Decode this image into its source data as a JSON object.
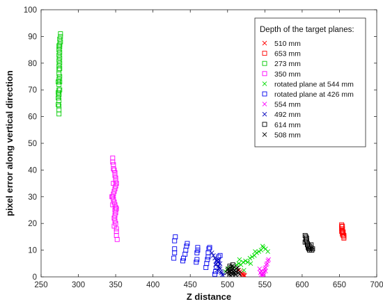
{
  "chart_data": {
    "type": "scatter",
    "title": "",
    "xlabel": "Z distance",
    "ylabel": "pixel error along vertical direction",
    "xlim": [
      250,
      700
    ],
    "ylim": [
      0,
      100
    ],
    "xticks": [
      250,
      300,
      350,
      400,
      450,
      500,
      550,
      600,
      650,
      700
    ],
    "yticks": [
      0,
      10,
      20,
      30,
      40,
      50,
      60,
      70,
      80,
      90,
      100
    ],
    "grid": false,
    "legend": {
      "title": "Depth of the target planes:",
      "placement": "top-right"
    },
    "series": [
      {
        "name": "510 mm",
        "marker": "x",
        "color": "#ff0000",
        "points": [
          [
            515,
            2.5
          ],
          [
            517,
            2.0
          ],
          [
            518,
            1.5
          ],
          [
            519,
            1.2
          ],
          [
            520,
            1.0
          ],
          [
            521,
            0.8
          ],
          [
            522,
            0.6
          ],
          [
            523,
            0.5
          ]
        ]
      },
      {
        "name": "653 mm",
        "marker": "square",
        "color": "#ff0000",
        "points": [
          [
            653,
            19.5
          ],
          [
            653,
            18.8
          ],
          [
            653,
            18.0
          ],
          [
            654,
            17.5
          ],
          [
            654,
            17.0
          ],
          [
            654,
            16.5
          ],
          [
            655,
            16.0
          ],
          [
            655,
            15.5
          ],
          [
            656,
            15.0
          ],
          [
            656,
            14.5
          ],
          [
            654,
            16.0
          ],
          [
            654,
            18.0
          ],
          [
            653,
            17.0
          ],
          [
            656,
            15.5
          ],
          [
            655,
            16.8
          ],
          [
            654,
            19.0
          ]
        ]
      },
      {
        "name": "273 mm",
        "marker": "square",
        "color": "#00cc00",
        "points": [
          [
            274,
            61
          ],
          [
            274,
            62.5
          ],
          [
            273,
            64.5
          ],
          [
            274,
            66
          ],
          [
            273,
            67
          ],
          [
            274,
            68
          ],
          [
            273,
            69
          ],
          [
            274,
            70
          ],
          [
            274,
            72
          ],
          [
            273,
            73
          ],
          [
            274,
            74
          ],
          [
            275,
            75
          ],
          [
            274,
            76
          ],
          [
            274,
            77.5
          ],
          [
            275,
            78
          ],
          [
            274,
            79
          ],
          [
            275,
            80
          ],
          [
            274,
            81
          ],
          [
            275,
            82
          ],
          [
            274,
            83
          ],
          [
            275,
            84
          ],
          [
            274,
            85
          ],
          [
            275,
            86
          ],
          [
            274,
            86.5
          ],
          [
            275,
            87
          ],
          [
            276,
            88
          ],
          [
            275,
            89
          ],
          [
            276,
            90
          ],
          [
            276,
            91
          ],
          [
            274,
            64
          ],
          [
            275,
            70
          ],
          [
            275,
            73
          ],
          [
            274,
            68.5
          ]
        ]
      },
      {
        "name": "350 mm",
        "marker": "square",
        "color": "#ff00ff",
        "points": [
          [
            346,
            44.5
          ],
          [
            346,
            43
          ],
          [
            347,
            42
          ],
          [
            347,
            40.5
          ],
          [
            348,
            40
          ],
          [
            349,
            39
          ],
          [
            349,
            38
          ],
          [
            350,
            37
          ],
          [
            350,
            36
          ],
          [
            351,
            35
          ],
          [
            350,
            34
          ],
          [
            349,
            33
          ],
          [
            348,
            32
          ],
          [
            347,
            31
          ],
          [
            346,
            30
          ],
          [
            347,
            29
          ],
          [
            348,
            28
          ],
          [
            349,
            27
          ],
          [
            350,
            26
          ],
          [
            351,
            25.5
          ],
          [
            350,
            24
          ],
          [
            349,
            23
          ],
          [
            348,
            22
          ],
          [
            349,
            21
          ],
          [
            350,
            20
          ],
          [
            351,
            18
          ],
          [
            351,
            17
          ],
          [
            351,
            15.5
          ],
          [
            352,
            14
          ],
          [
            346,
            27
          ],
          [
            347,
            35
          ],
          [
            349,
            25
          ],
          [
            348,
            19
          ],
          [
            345,
            30
          ]
        ]
      },
      {
        "name": "rotated plane at 544 mm",
        "marker": "x",
        "color": "#00dd00",
        "points": [
          [
            497,
            2.0
          ],
          [
            500,
            3.0
          ],
          [
            503,
            3.5
          ],
          [
            506,
            4.0
          ],
          [
            509,
            3.5
          ],
          [
            512,
            4.5
          ],
          [
            515,
            5.0
          ],
          [
            518,
            4.5
          ],
          [
            521,
            5.5
          ],
          [
            524,
            6.0
          ],
          [
            527,
            5.5
          ],
          [
            530,
            7.0
          ],
          [
            533,
            7.5
          ],
          [
            536,
            8.0
          ],
          [
            539,
            9.0
          ],
          [
            542,
            9.5
          ],
          [
            545,
            10.0
          ],
          [
            548,
            11.0
          ],
          [
            551,
            10.5
          ],
          [
            554,
            9.5
          ],
          [
            547,
            11.5
          ],
          [
            537,
            9.5
          ],
          [
            531,
            5.0
          ],
          [
            522,
            2.5
          ],
          [
            516,
            6.5
          ]
        ]
      },
      {
        "name": "rotated plane at 426 mm",
        "marker": "square",
        "color": "#0000ee",
        "points": [
          [
            428,
            7.0
          ],
          [
            429,
            9.0
          ],
          [
            429,
            10.5
          ],
          [
            429,
            13.5
          ],
          [
            430,
            15.0
          ],
          [
            440,
            6.0
          ],
          [
            441,
            7.0
          ],
          [
            443,
            8.5
          ],
          [
            444,
            10.0
          ],
          [
            445,
            11.5
          ],
          [
            446,
            12.5
          ],
          [
            458,
            5.5
          ],
          [
            459,
            6.5
          ],
          [
            459,
            9.0
          ],
          [
            460,
            10.0
          ],
          [
            460,
            11.0
          ],
          [
            471,
            3.5
          ],
          [
            472,
            5.0
          ],
          [
            473,
            6.5
          ],
          [
            474,
            7.5
          ],
          [
            474,
            9.0
          ],
          [
            475,
            10.5
          ],
          [
            476,
            11.0
          ],
          [
            483,
            1.0
          ],
          [
            484,
            2.0
          ],
          [
            485,
            3.5
          ],
          [
            486,
            5.0
          ],
          [
            487,
            6.0
          ],
          [
            488,
            7.5
          ],
          [
            490,
            8.0
          ]
        ]
      },
      {
        "name": "554 mm",
        "marker": "x",
        "color": "#ff00ff",
        "points": [
          [
            543,
            3.0
          ],
          [
            544,
            1.5
          ],
          [
            545,
            0.8
          ],
          [
            546,
            0.5
          ],
          [
            547,
            0.8
          ],
          [
            548,
            1.2
          ],
          [
            549,
            2.0
          ],
          [
            550,
            3.0
          ],
          [
            551,
            3.5
          ],
          [
            552,
            4.5
          ],
          [
            553,
            5.0
          ],
          [
            554,
            6.0
          ],
          [
            555,
            6.5
          ],
          [
            545,
            2.2
          ],
          [
            548,
            0.5
          ],
          [
            551,
            2.2
          ]
        ]
      },
      {
        "name": "492 mm",
        "marker": "x",
        "color": "#0000bb",
        "points": [
          [
            479,
            9.0
          ],
          [
            481,
            8.0
          ],
          [
            483,
            7.0
          ],
          [
            485,
            6.0
          ],
          [
            487,
            5.5
          ],
          [
            488,
            4.0
          ],
          [
            489,
            3.5
          ],
          [
            490,
            3.0
          ],
          [
            491,
            2.0
          ],
          [
            492,
            1.5
          ],
          [
            493,
            0.8
          ],
          [
            494,
            0.5
          ],
          [
            486,
            2.5
          ],
          [
            490,
            5.0
          ],
          [
            488,
            6.5
          ],
          [
            484,
            4.5
          ]
        ]
      },
      {
        "name": "614 mm",
        "marker": "square",
        "color": "#000000",
        "points": [
          [
            503,
            4.0
          ],
          [
            504,
            2.5
          ],
          [
            505,
            1.5
          ],
          [
            506,
            0.5
          ],
          [
            507,
            2.0
          ],
          [
            505,
            3.5
          ],
          [
            507,
            4.5
          ],
          [
            604,
            15.5
          ],
          [
            605,
            15.0
          ],
          [
            605,
            14.0
          ],
          [
            606,
            13.5
          ],
          [
            606,
            13.0
          ],
          [
            607,
            12.5
          ],
          [
            607,
            12.0
          ],
          [
            608,
            11.5
          ],
          [
            608,
            11.0
          ],
          [
            609,
            10.5
          ],
          [
            610,
            10.0
          ],
          [
            611,
            10.5
          ],
          [
            612,
            11.0
          ],
          [
            613,
            10.0
          ],
          [
            614,
            10.5
          ],
          [
            604,
            13.0
          ],
          [
            606,
            14.5
          ],
          [
            608,
            12.0
          ],
          [
            610,
            11.5
          ],
          [
            612,
            12.0
          ]
        ]
      },
      {
        "name": "508 mm",
        "marker": "x",
        "color": "#000000",
        "points": [
          [
            499,
            1.5
          ],
          [
            500,
            2.5
          ],
          [
            501,
            3.0
          ],
          [
            502,
            2.0
          ],
          [
            503,
            1.0
          ],
          [
            504,
            0.5
          ],
          [
            505,
            1.5
          ],
          [
            506,
            2.5
          ],
          [
            507,
            3.0
          ],
          [
            508,
            2.0
          ],
          [
            509,
            1.5
          ],
          [
            510,
            1.0
          ],
          [
            511,
            2.0
          ],
          [
            512,
            3.0
          ],
          [
            513,
            3.5
          ],
          [
            514,
            2.5
          ],
          [
            515,
            1.5
          ],
          [
            516,
            1.0
          ],
          [
            506,
            4.0
          ],
          [
            511,
            0.8
          ]
        ]
      }
    ]
  }
}
